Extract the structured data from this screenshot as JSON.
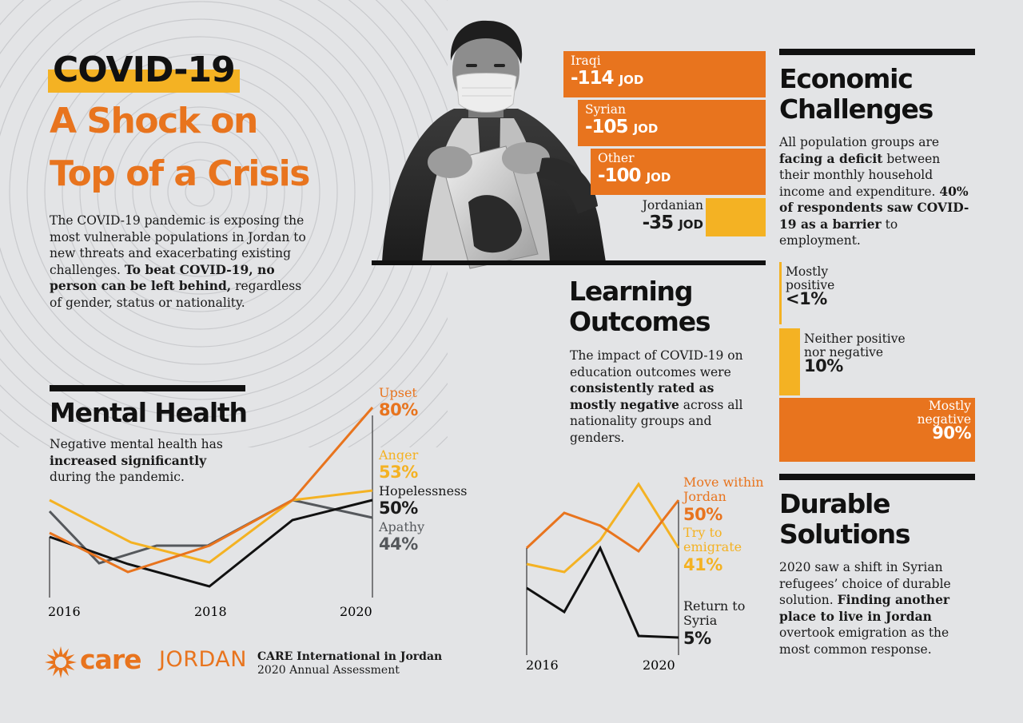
{
  "colors": {
    "orange": "#e8741e",
    "yellow": "#f4b223",
    "black": "#111111",
    "grey": "#55585c",
    "background": "#e3e4e6"
  },
  "header": {
    "title_line1": "COVID-19",
    "title_line2": "A Shock on",
    "title_line3": "Top of a Crisis",
    "intro": "The COVID-19 pandemic is exposing the most vulnerable populations in Jordan to new threats and exacerbating existing challenges.",
    "intro_bold": "To beat COVID-19, no person can be left behind,",
    "intro_tail": " regardless of gender, status or nationality."
  },
  "economic": {
    "heading_line1": "Economic",
    "heading_line2": "Challenges",
    "text_1": "All population groups are ",
    "text_bold_1": "facing a deficit",
    "text_2": " between their monthly household income and expenditure. ",
    "text_bold_2": "40% of respondents saw COVID-19 as a barrier",
    "text_3": " to employment.",
    "bars": [
      {
        "name": "Iraqi",
        "value": "-114",
        "unit": "JOD"
      },
      {
        "name": "Syrian",
        "value": "-105",
        "unit": "JOD"
      },
      {
        "name": "Other",
        "value": "-100",
        "unit": "JOD"
      },
      {
        "name": "Jordanian",
        "value": "-35",
        "unit": "JOD"
      }
    ]
  },
  "learning": {
    "heading_line1": "Learning",
    "heading_line2": "Outcomes",
    "text_1": "The impact of COVID-19 on education outcomes were ",
    "text_bold": "consistently rated as mostly negative",
    "text_2": " across all nationality groups and genders.",
    "bars": [
      {
        "label_1": "Mostly",
        "label_2": "positive",
        "value": "<1%",
        "fraction": 0.01
      },
      {
        "label_1": "Neither positive",
        "label_2": "nor negative",
        "value": "10%",
        "fraction": 0.1
      },
      {
        "label_1": "Mostly",
        "label_2": "negative",
        "value": "90%",
        "fraction": 0.9
      }
    ]
  },
  "mental_health": {
    "heading": "Mental Health",
    "text_1": "Negative mental health has ",
    "text_bold": "increased significantly",
    "text_2": " during the pandemic.",
    "chart": {
      "x_ticks": [
        "2016",
        "2018",
        "2020"
      ],
      "series": [
        {
          "name": "Upset",
          "value": "80%",
          "color": "#e8741e"
        },
        {
          "name": "Anger",
          "value": "53%",
          "color": "#f4b223"
        },
        {
          "name": "Hopelessness",
          "value": "50%",
          "color": "#111111"
        },
        {
          "name": "Apathy",
          "value": "44%",
          "color": "#55585c"
        }
      ]
    }
  },
  "durable": {
    "heading_line1": "Durable",
    "heading_line2": "Solutions",
    "text_1": "2020 saw a shift in Syrian refugees’ choice of durable solution. ",
    "text_bold": "Finding another place to live in Jordan",
    "text_2": " overtook emigration as the most common response.",
    "chart": {
      "x_ticks": [
        "2016",
        "2020"
      ],
      "series": [
        {
          "name_1": "Move within",
          "name_2": "Jordan",
          "value": "50%",
          "color": "#e8741e"
        },
        {
          "name_1": "Try to",
          "name_2": "emigrate",
          "value": "41%",
          "color": "#f4b223"
        },
        {
          "name_1": "Return to",
          "name_2": "Syria",
          "value": "5%",
          "color": "#111111"
        }
      ]
    }
  },
  "footer": {
    "logo_word": "care",
    "logo_country": "JORDAN",
    "org": "CARE International in Jordan",
    "sub": "2020 Annual Assessment"
  }
}
